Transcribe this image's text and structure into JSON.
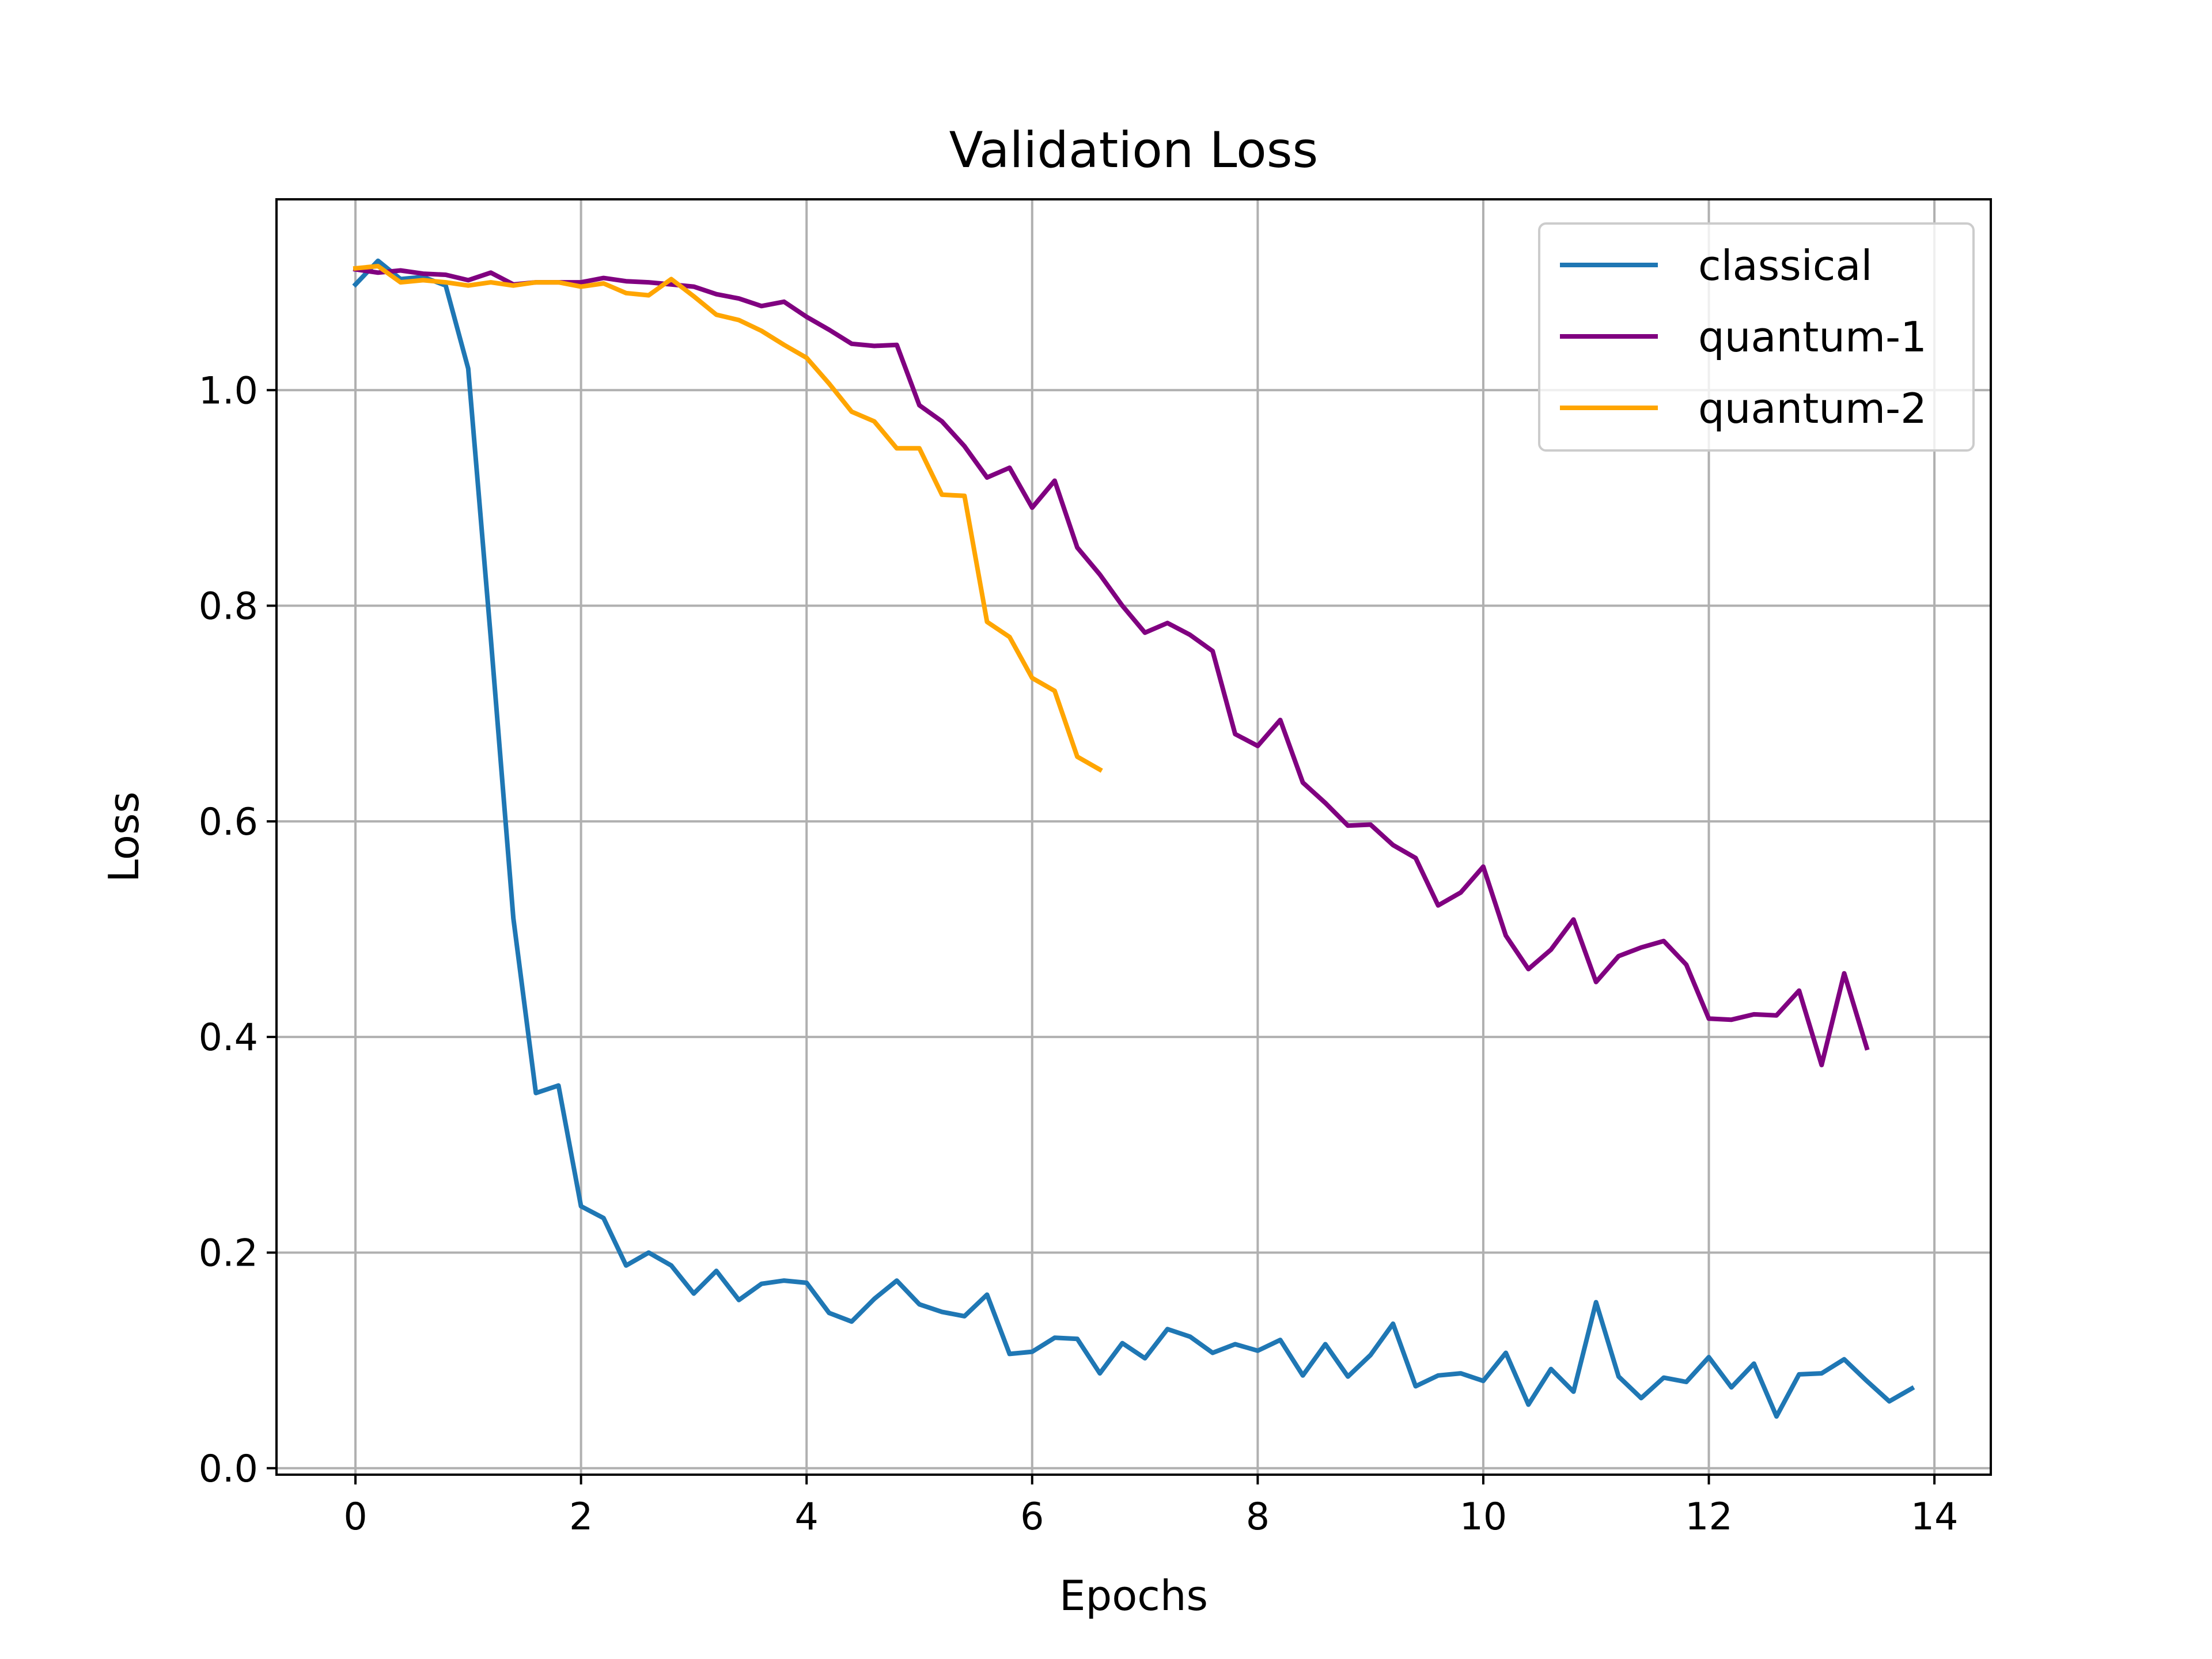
{
  "chart_data": {
    "type": "line",
    "title": "Validation Loss",
    "xlabel": "Epochs",
    "ylabel": "Loss",
    "xlim": [
      -0.7,
      14.5
    ],
    "ylim": [
      -0.006,
      1.177
    ],
    "xticks": [
      0,
      2,
      4,
      6,
      8,
      10,
      12,
      14
    ],
    "yticks": [
      0.0,
      0.2,
      0.4,
      0.6,
      0.8,
      1.0
    ],
    "xtick_labels": [
      "0",
      "2",
      "4",
      "6",
      "8",
      "10",
      "12",
      "14"
    ],
    "ytick_labels": [
      "0.0",
      "0.2",
      "0.4",
      "0.6",
      "0.8",
      "1.0"
    ],
    "grid": true,
    "legend_position": "upper right",
    "series": [
      {
        "name": "classical",
        "color": "#1f77b4",
        "x_start": 0,
        "x_step": 0.2,
        "y": [
          1.098,
          1.12,
          1.103,
          1.105,
          1.097,
          1.02,
          0.77,
          0.51,
          0.348,
          0.355,
          0.243,
          0.232,
          0.188,
          0.2,
          0.188,
          0.162,
          0.183,
          0.156,
          0.171,
          0.174,
          0.172,
          0.144,
          0.136,
          0.157,
          0.174,
          0.152,
          0.145,
          0.141,
          0.161,
          0.106,
          0.108,
          0.121,
          0.12,
          0.088,
          0.116,
          0.102,
          0.129,
          0.122,
          0.107,
          0.115,
          0.109,
          0.119,
          0.086,
          0.115,
          0.085,
          0.105,
          0.134,
          0.076,
          0.086,
          0.088,
          0.081,
          0.107,
          0.059,
          0.092,
          0.071,
          0.154,
          0.085,
          0.065,
          0.084,
          0.08,
          0.103,
          0.075,
          0.097,
          0.048,
          0.087,
          0.088,
          0.101,
          0.081,
          0.062,
          0.074
        ]
      },
      {
        "name": "quantum-1",
        "color": "#800080",
        "x_start": 0,
        "x_step": 0.2,
        "y": [
          1.112,
          1.109,
          1.111,
          1.108,
          1.107,
          1.102,
          1.109,
          1.098,
          1.1,
          1.1,
          1.1,
          1.104,
          1.101,
          1.1,
          1.098,
          1.096,
          1.089,
          1.085,
          1.078,
          1.082,
          1.068,
          1.056,
          1.043,
          1.041,
          1.042,
          0.986,
          0.971,
          0.948,
          0.919,
          0.928,
          0.891,
          0.916,
          0.854,
          0.829,
          0.8,
          0.775,
          0.784,
          0.773,
          0.758,
          0.681,
          0.67,
          0.694,
          0.636,
          0.617,
          0.596,
          0.597,
          0.578,
          0.566,
          0.522,
          0.534,
          0.558,
          0.494,
          0.463,
          0.481,
          0.509,
          0.451,
          0.475,
          0.483,
          0.489,
          0.467,
          0.417,
          0.416,
          0.421,
          0.42,
          0.443,
          0.374,
          0.459,
          0.39
        ]
      },
      {
        "name": "quantum-2",
        "color": "#ffa500",
        "x_start": 0,
        "x_step": 0.2,
        "y": [
          1.113,
          1.115,
          1.1,
          1.102,
          1.1,
          1.097,
          1.1,
          1.097,
          1.1,
          1.1,
          1.096,
          1.099,
          1.09,
          1.088,
          1.103,
          1.087,
          1.07,
          1.065,
          1.055,
          1.042,
          1.03,
          1.006,
          0.98,
          0.971,
          0.946,
          0.946,
          0.903,
          0.902,
          0.785,
          0.771,
          0.733,
          0.721,
          0.66,
          0.648
        ]
      }
    ]
  }
}
